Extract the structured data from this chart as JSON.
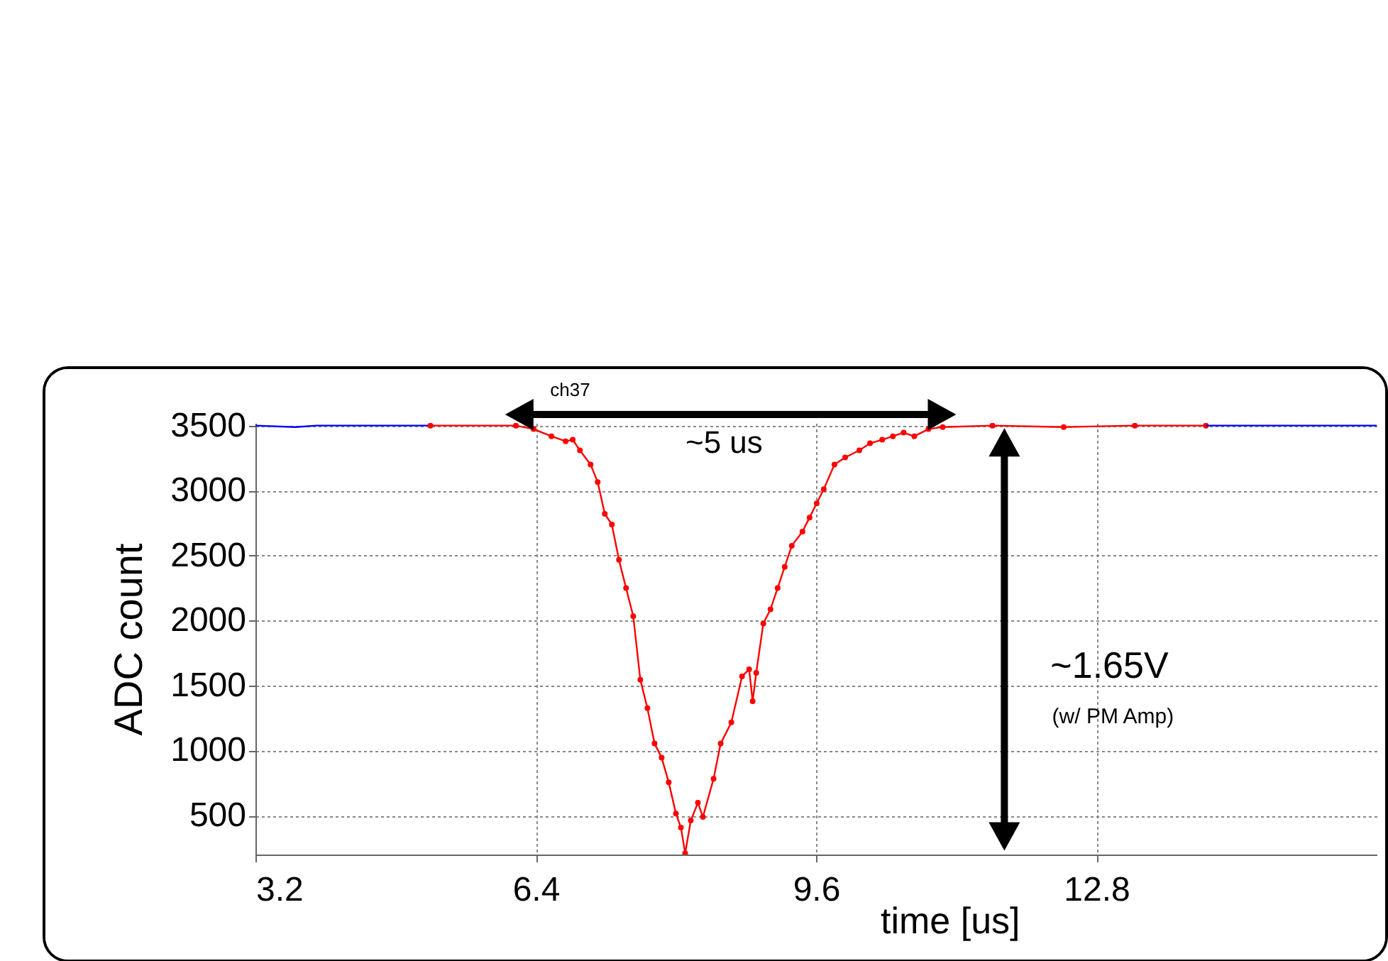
{
  "chart_data": {
    "type": "line",
    "title": "ch37",
    "xlabel": "time [us]",
    "ylabel": "ADC count",
    "xlim": [
      3.2,
      16.0
    ],
    "xticks": [
      3.2,
      6.4,
      9.6,
      12.8
    ],
    "ylim": [
      200,
      3520
    ],
    "yticks": [
      500,
      1000,
      1500,
      2000,
      2500,
      3000,
      3500
    ],
    "grid": true,
    "series": [
      {
        "color": "#0000ff",
        "x": [
          3.2,
          3.655,
          3.898,
          5.198
        ],
        "values": [
          3500,
          3489,
          3500,
          3500
        ]
      },
      {
        "color": "#ff0000",
        "marker": "circle",
        "x": [
          5.198,
          6.173,
          6.376,
          6.579,
          6.741,
          6.822,
          6.904,
          7.026,
          7.107,
          7.188,
          7.269,
          7.35,
          7.431,
          7.513,
          7.594,
          7.675,
          7.756,
          7.837,
          7.918,
          8.0,
          8.057,
          8.106,
          8.17,
          8.251,
          8.308,
          8.43,
          8.511,
          8.633,
          8.755,
          8.836,
          8.876,
          8.917,
          8.998,
          9.08,
          9.161,
          9.242,
          9.323,
          9.445,
          9.526,
          9.607,
          9.688,
          9.81,
          9.932,
          10.094,
          10.216,
          10.355,
          10.477,
          10.599,
          10.721,
          10.883,
          11.046,
          11.614,
          12.427,
          13.239,
          14.051
        ],
        "values": [
          3500,
          3500,
          3473,
          3418,
          3380,
          3391,
          3310,
          3201,
          3065,
          2821,
          2739,
          2467,
          2250,
          2033,
          1544,
          1326,
          1054,
          946,
          755,
          516,
          408,
          210,
          462,
          598,
          489,
          783,
          1054,
          1217,
          1571,
          1625,
          1380,
          1598,
          1978,
          2087,
          2250,
          2413,
          2576,
          2685,
          2793,
          2902,
          3011,
          3201,
          3255,
          3310,
          3364,
          3391,
          3418,
          3446,
          3418,
          3473,
          3489,
          3500,
          3489,
          3500,
          3500
        ]
      },
      {
        "color": "#0000ff",
        "x": [
          14.051,
          15.35,
          16.0
        ],
        "values": [
          3500,
          3500,
          3500
        ]
      }
    ],
    "annotations": [
      "~5 us",
      "~1.65V",
      "(w/ PM Amp)"
    ]
  }
}
